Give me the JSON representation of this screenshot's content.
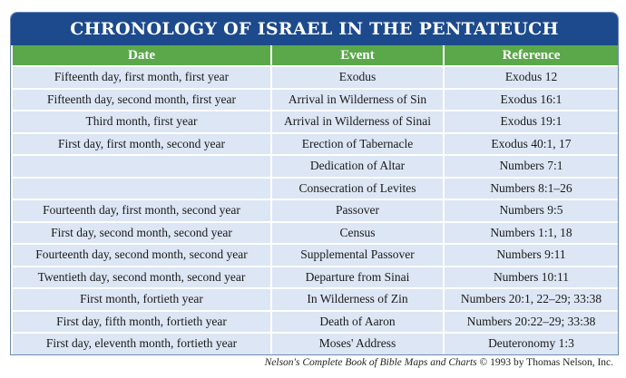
{
  "title": "CHRONOLOGY OF ISRAEL IN THE PENTATEUCH",
  "columns": {
    "date": "Date",
    "event": "Event",
    "reference": "Reference"
  },
  "rows": [
    {
      "date": "Fifteenth day, first month, first year",
      "event": "Exodus",
      "reference": "Exodus 12"
    },
    {
      "date": "Fifteenth day, second month, first year",
      "event": "Arrival in Wilderness of Sin",
      "reference": "Exodus 16:1"
    },
    {
      "date": "Third month, first year",
      "event": "Arrival in Wilderness of Sinai",
      "reference": "Exodus 19:1"
    },
    {
      "date": "First day, first month, second year",
      "event": "Erection of Tabernacle",
      "reference": "Exodus 40:1, 17"
    },
    {
      "date": "",
      "event": "Dedication of Altar",
      "reference": "Numbers 7:1"
    },
    {
      "date": "",
      "event": "Consecration of Levites",
      "reference": "Numbers 8:1–26"
    },
    {
      "date": "Fourteenth day, first month, second year",
      "event": "Passover",
      "reference": "Numbers 9:5"
    },
    {
      "date": "First day, second month, second year",
      "event": "Census",
      "reference": "Numbers 1:1, 18"
    },
    {
      "date": "Fourteenth day, second month, second year",
      "event": "Supplemental Passover",
      "reference": "Numbers 9:11"
    },
    {
      "date": "Twentieth day, second month, second year",
      "event": "Departure from Sinai",
      "reference": "Numbers 10:11"
    },
    {
      "date": "First month, fortieth year",
      "event": "In Wilderness of Zin",
      "reference": "Numbers 20:1, 22–29; 33:38"
    },
    {
      "date": "First day, fifth month, fortieth year",
      "event": "Death of Aaron",
      "reference": "Numbers 20:22–29; 33:38"
    },
    {
      "date": "First day, eleventh month, fortieth year",
      "event": "Moses' Address",
      "reference": "Deuteronomy 1:3"
    }
  ],
  "credit": {
    "book": "Nelson's Complete Book of Bible Maps and Charts",
    "rest": " © 1993 by Thomas Nelson, Inc."
  },
  "colors": {
    "title_bg": "#1c4a8c",
    "header_bg": "#5aa84a",
    "row_bg": "#dce6f4"
  }
}
